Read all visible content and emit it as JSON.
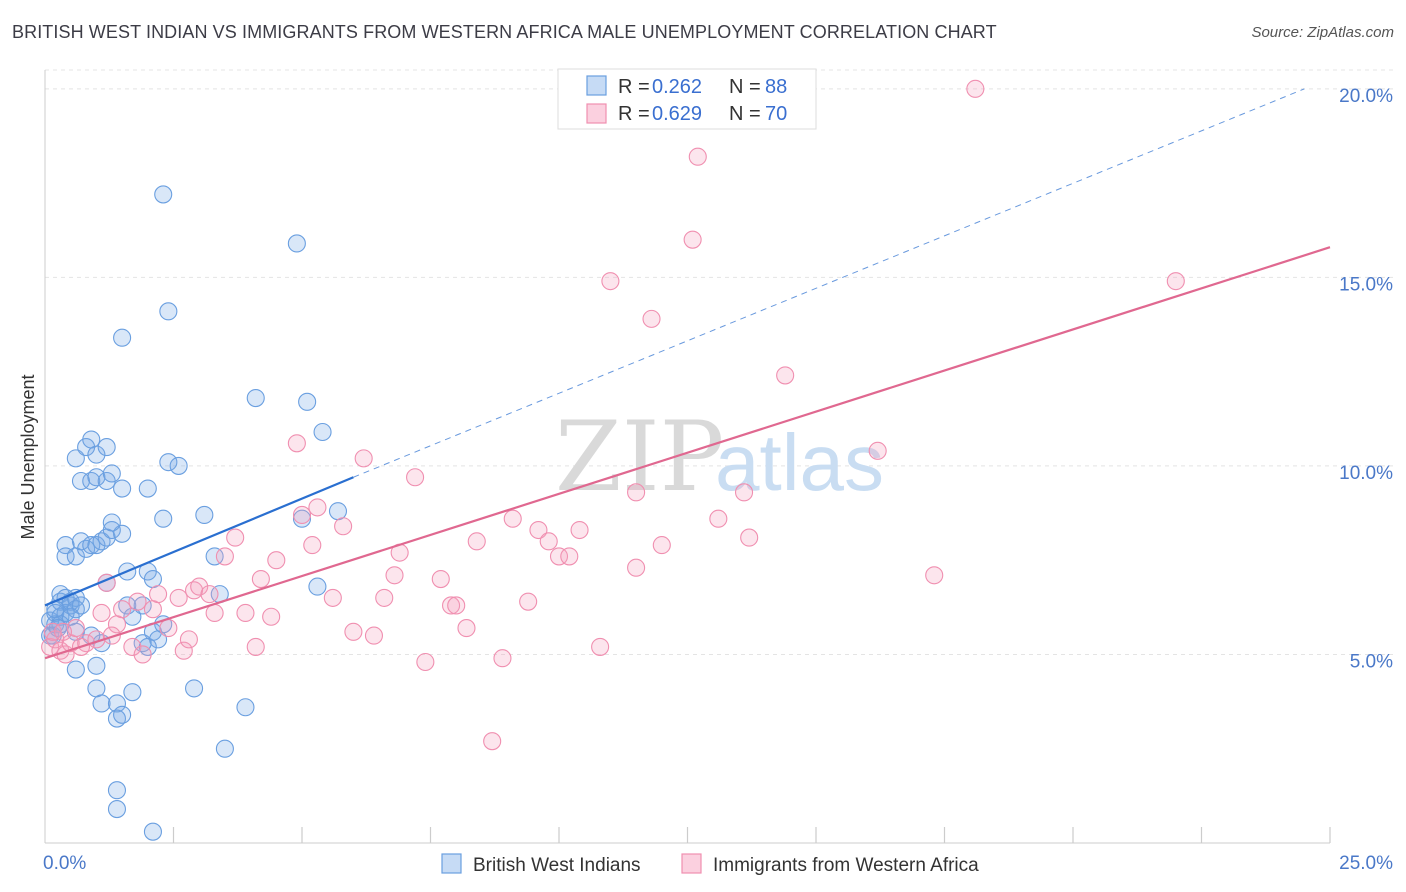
{
  "title": "BRITISH WEST INDIAN VS IMMIGRANTS FROM WESTERN AFRICA MALE UNEMPLOYMENT CORRELATION CHART",
  "source": "Source: ZipAtlas.com",
  "watermark": {
    "zip": "ZIP",
    "atlas": "atlas"
  },
  "colors": {
    "blue": "#6a9fe0",
    "blue_line": "#2a6fd0",
    "pink": "#f08fb0",
    "pink_line": "#e06890"
  },
  "legend": {
    "rows": [
      {
        "r_label": "R =",
        "r_value": "0.262",
        "n_label": "N =",
        "n_value": "88"
      },
      {
        "r_label": "R =",
        "r_value": "0.629",
        "n_label": "N =",
        "n_value": "70"
      }
    ]
  },
  "chart_data": {
    "type": "scatter",
    "title": "BRITISH WEST INDIAN VS IMMIGRANTS FROM WESTERN AFRICA MALE UNEMPLOYMENT CORRELATION CHART",
    "xlabel": "",
    "ylabel": "Male Unemployment",
    "xlim": [
      0,
      25
    ],
    "ylim": [
      0,
      20.5
    ],
    "x_tick_labels": [
      "0.0%",
      "25.0%"
    ],
    "y_tick_labels": [
      "5.0%",
      "10.0%",
      "15.0%",
      "20.0%"
    ],
    "y_ticks": [
      5,
      10,
      15,
      20
    ],
    "series": [
      {
        "name": "British West Indians",
        "color": "#6a9fe0",
        "trend": {
          "x": [
            0,
            6.0
          ],
          "y": [
            6.3,
            9.7
          ],
          "dashed_to": [
            24.5,
            20.0
          ]
        },
        "points": [
          [
            0.1,
            5.9
          ],
          [
            0.1,
            5.5
          ],
          [
            0.2,
            6.1
          ],
          [
            0.2,
            5.8
          ],
          [
            0.3,
            6.4
          ],
          [
            0.3,
            6.0
          ],
          [
            0.3,
            6.6
          ],
          [
            0.4,
            6.5
          ],
          [
            0.4,
            6.1
          ],
          [
            0.5,
            6.3
          ],
          [
            0.5,
            6.4
          ],
          [
            0.6,
            6.5
          ],
          [
            0.6,
            6.2
          ],
          [
            0.7,
            6.3
          ],
          [
            0.4,
            7.9
          ],
          [
            0.4,
            7.6
          ],
          [
            0.6,
            7.6
          ],
          [
            0.7,
            8.0
          ],
          [
            0.8,
            7.8
          ],
          [
            0.9,
            7.9
          ],
          [
            1.0,
            7.9
          ],
          [
            1.1,
            8.0
          ],
          [
            1.2,
            8.1
          ],
          [
            1.3,
            8.3
          ],
          [
            0.7,
            9.6
          ],
          [
            0.9,
            9.6
          ],
          [
            1.0,
            9.7
          ],
          [
            1.2,
            9.6
          ],
          [
            1.3,
            9.8
          ],
          [
            1.5,
            9.4
          ],
          [
            0.6,
            10.2
          ],
          [
            0.8,
            10.5
          ],
          [
            0.9,
            10.7
          ],
          [
            1.0,
            10.3
          ],
          [
            1.2,
            10.5
          ],
          [
            1.5,
            8.2
          ],
          [
            1.3,
            8.5
          ],
          [
            2.0,
            9.4
          ],
          [
            2.3,
            8.6
          ],
          [
            3.1,
            8.7
          ],
          [
            3.3,
            7.6
          ],
          [
            3.4,
            6.6
          ],
          [
            2.0,
            7.2
          ],
          [
            2.1,
            7.0
          ],
          [
            1.6,
            7.2
          ],
          [
            1.2,
            6.9
          ],
          [
            1.6,
            6.3
          ],
          [
            1.7,
            6.0
          ],
          [
            1.9,
            6.3
          ],
          [
            2.1,
            5.6
          ],
          [
            2.2,
            5.4
          ],
          [
            2.3,
            5.8
          ],
          [
            1.9,
            5.3
          ],
          [
            2.0,
            5.2
          ],
          [
            1.1,
            5.3
          ],
          [
            0.9,
            5.5
          ],
          [
            0.6,
            5.6
          ],
          [
            0.6,
            4.6
          ],
          [
            1.0,
            4.7
          ],
          [
            1.0,
            4.1
          ],
          [
            1.1,
            3.7
          ],
          [
            1.4,
            3.7
          ],
          [
            1.4,
            3.3
          ],
          [
            1.5,
            3.4
          ],
          [
            1.7,
            4.0
          ],
          [
            2.9,
            4.1
          ],
          [
            3.9,
            3.6
          ],
          [
            3.5,
            2.5
          ],
          [
            1.4,
            1.4
          ],
          [
            1.4,
            0.9
          ],
          [
            2.1,
            0.3
          ],
          [
            2.3,
            17.2
          ],
          [
            4.9,
            15.9
          ],
          [
            2.4,
            14.1
          ],
          [
            1.5,
            13.4
          ],
          [
            4.1,
            11.8
          ],
          [
            5.1,
            11.7
          ],
          [
            5.4,
            10.9
          ],
          [
            2.4,
            10.1
          ],
          [
            2.6,
            10.0
          ],
          [
            5.7,
            8.8
          ],
          [
            5.0,
            8.6
          ],
          [
            5.3,
            6.8
          ],
          [
            0.2,
            6.2
          ],
          [
            0.3,
            5.8
          ],
          [
            0.5,
            6.0
          ],
          [
            0.15,
            5.5
          ],
          [
            0.25,
            5.7
          ]
        ]
      },
      {
        "name": "Immigrants from Western Africa",
        "color": "#f08fb0",
        "trend": {
          "x": [
            0,
            25.0
          ],
          "y": [
            4.9,
            15.8
          ]
        },
        "points": [
          [
            0.1,
            5.2
          ],
          [
            0.2,
            5.4
          ],
          [
            0.3,
            5.1
          ],
          [
            0.4,
            5.0
          ],
          [
            0.5,
            5.3
          ],
          [
            0.6,
            5.7
          ],
          [
            0.8,
            5.3
          ],
          [
            1.0,
            5.4
          ],
          [
            1.1,
            6.1
          ],
          [
            1.2,
            6.9
          ],
          [
            1.4,
            5.8
          ],
          [
            1.5,
            6.2
          ],
          [
            1.7,
            5.2
          ],
          [
            1.8,
            6.4
          ],
          [
            1.9,
            5.0
          ],
          [
            2.1,
            6.2
          ],
          [
            2.2,
            6.6
          ],
          [
            2.4,
            5.7
          ],
          [
            2.6,
            6.5
          ],
          [
            2.7,
            5.1
          ],
          [
            2.8,
            5.4
          ],
          [
            2.9,
            6.7
          ],
          [
            3.0,
            6.8
          ],
          [
            3.2,
            6.6
          ],
          [
            3.3,
            6.1
          ],
          [
            3.5,
            7.6
          ],
          [
            3.7,
            8.1
          ],
          [
            3.9,
            6.1
          ],
          [
            4.1,
            5.2
          ],
          [
            4.2,
            7.0
          ],
          [
            4.4,
            6.0
          ],
          [
            4.5,
            7.5
          ],
          [
            4.9,
            10.6
          ],
          [
            5.0,
            8.7
          ],
          [
            5.2,
            7.9
          ],
          [
            5.3,
            8.9
          ],
          [
            5.6,
            6.5
          ],
          [
            5.8,
            8.4
          ],
          [
            6.0,
            5.6
          ],
          [
            6.2,
            10.2
          ],
          [
            6.4,
            5.5
          ],
          [
            6.6,
            6.5
          ],
          [
            6.8,
            7.1
          ],
          [
            6.9,
            7.7
          ],
          [
            7.2,
            9.7
          ],
          [
            7.4,
            4.8
          ],
          [
            7.7,
            7.0
          ],
          [
            7.9,
            6.3
          ],
          [
            8.0,
            6.3
          ],
          [
            8.2,
            5.7
          ],
          [
            8.4,
            8.0
          ],
          [
            8.7,
            2.7
          ],
          [
            8.9,
            4.9
          ],
          [
            9.1,
            8.6
          ],
          [
            9.4,
            6.4
          ],
          [
            9.6,
            8.3
          ],
          [
            9.8,
            8.0
          ],
          [
            10.0,
            7.6
          ],
          [
            10.2,
            7.6
          ],
          [
            10.4,
            8.3
          ],
          [
            10.8,
            5.2
          ],
          [
            11.5,
            9.3
          ],
          [
            11.5,
            7.3
          ],
          [
            11.8,
            13.9
          ],
          [
            12.0,
            7.9
          ],
          [
            12.6,
            16.0
          ],
          [
            12.7,
            18.2
          ],
          [
            13.1,
            8.6
          ],
          [
            13.6,
            9.3
          ],
          [
            13.7,
            8.1
          ],
          [
            14.4,
            12.4
          ],
          [
            16.2,
            10.4
          ],
          [
            17.3,
            7.1
          ],
          [
            18.1,
            20.0
          ],
          [
            11.0,
            14.9
          ],
          [
            22.0,
            14.9
          ],
          [
            0.15,
            5.6
          ],
          [
            0.35,
            5.6
          ],
          [
            0.7,
            5.2
          ],
          [
            1.3,
            5.5
          ]
        ]
      }
    ],
    "legend_position": "top-center"
  },
  "bottom_legend": [
    "British West Indians",
    "Immigrants from Western Africa"
  ]
}
